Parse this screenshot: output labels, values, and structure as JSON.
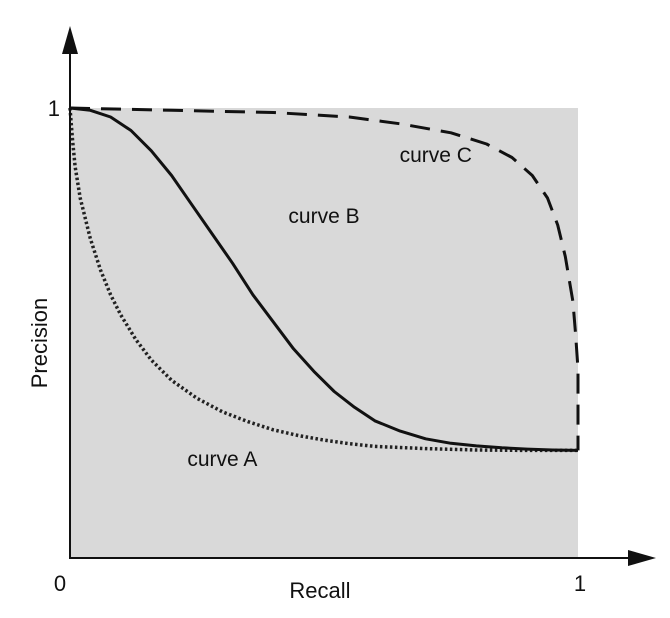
{
  "chart_data": {
    "type": "line",
    "xlabel": "Recall",
    "ylabel": "Precision",
    "xlim": [
      0,
      1
    ],
    "ylim": [
      0,
      1
    ],
    "grid": false,
    "legend": "none",
    "background_color": "#d9d9d9",
    "x_ticks": [
      {
        "value": 0,
        "label": "0"
      },
      {
        "value": 1,
        "label": "1"
      }
    ],
    "y_ticks": [
      {
        "value": 1,
        "label": "1"
      }
    ],
    "series": [
      {
        "label": "curve A",
        "label_at": [
          0.3,
          0.205
        ],
        "style": "dotted",
        "color": "#222222",
        "points": [
          [
            0,
            1
          ],
          [
            0.005,
            0.93
          ],
          [
            0.01,
            0.87
          ],
          [
            0.02,
            0.8
          ],
          [
            0.04,
            0.71
          ],
          [
            0.06,
            0.64
          ],
          [
            0.08,
            0.585
          ],
          [
            0.1,
            0.54
          ],
          [
            0.13,
            0.485
          ],
          [
            0.16,
            0.44
          ],
          [
            0.2,
            0.395
          ],
          [
            0.25,
            0.355
          ],
          [
            0.3,
            0.325
          ],
          [
            0.35,
            0.303
          ],
          [
            0.4,
            0.285
          ],
          [
            0.45,
            0.272
          ],
          [
            0.5,
            0.262
          ],
          [
            0.55,
            0.254
          ],
          [
            0.6,
            0.248
          ],
          [
            0.7,
            0.243
          ],
          [
            0.8,
            0.24
          ],
          [
            0.9,
            0.239
          ],
          [
            1.0,
            0.239
          ]
        ]
      },
      {
        "label": "curve B",
        "label_at": [
          0.5,
          0.745
        ],
        "style": "solid",
        "color": "#111111",
        "points": [
          [
            0,
            1
          ],
          [
            0.04,
            0.995
          ],
          [
            0.08,
            0.98
          ],
          [
            0.12,
            0.95
          ],
          [
            0.16,
            0.905
          ],
          [
            0.2,
            0.85
          ],
          [
            0.24,
            0.785
          ],
          [
            0.28,
            0.72
          ],
          [
            0.32,
            0.655
          ],
          [
            0.36,
            0.585
          ],
          [
            0.4,
            0.525
          ],
          [
            0.44,
            0.465
          ],
          [
            0.48,
            0.415
          ],
          [
            0.52,
            0.37
          ],
          [
            0.56,
            0.335
          ],
          [
            0.6,
            0.305
          ],
          [
            0.65,
            0.282
          ],
          [
            0.7,
            0.265
          ],
          [
            0.75,
            0.255
          ],
          [
            0.8,
            0.249
          ],
          [
            0.85,
            0.245
          ],
          [
            0.9,
            0.242
          ],
          [
            0.95,
            0.24
          ],
          [
            1.0,
            0.239
          ]
        ]
      },
      {
        "label": "curve C",
        "label_at": [
          0.72,
          0.88
        ],
        "style": "dashed",
        "color": "#111111",
        "points": [
          [
            0,
            1
          ],
          [
            0.2,
            0.995
          ],
          [
            0.4,
            0.99
          ],
          [
            0.55,
            0.98
          ],
          [
            0.65,
            0.965
          ],
          [
            0.75,
            0.945
          ],
          [
            0.82,
            0.92
          ],
          [
            0.87,
            0.89
          ],
          [
            0.91,
            0.85
          ],
          [
            0.94,
            0.8
          ],
          [
            0.96,
            0.74
          ],
          [
            0.975,
            0.67
          ],
          [
            0.99,
            0.57
          ],
          [
            0.995,
            0.5
          ],
          [
            1.0,
            0.42
          ],
          [
            1.0,
            0.239
          ]
        ]
      }
    ]
  }
}
